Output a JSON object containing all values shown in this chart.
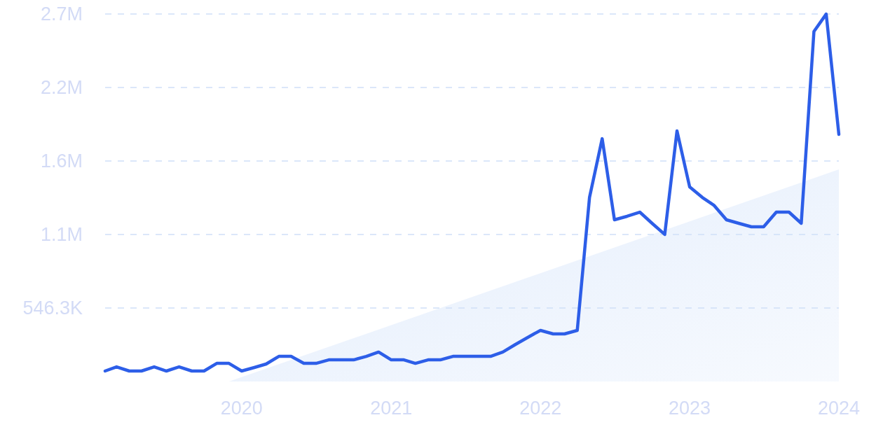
{
  "chart_data": {
    "type": "line",
    "x": [
      "2019-02",
      "2019-03",
      "2019-04",
      "2019-05",
      "2019-06",
      "2019-07",
      "2019-08",
      "2019-09",
      "2019-10",
      "2019-11",
      "2019-12",
      "2020-01",
      "2020-02",
      "2020-03",
      "2020-04",
      "2020-05",
      "2020-06",
      "2020-07",
      "2020-08",
      "2020-09",
      "2020-10",
      "2020-11",
      "2020-12",
      "2021-01",
      "2021-02",
      "2021-03",
      "2021-04",
      "2021-05",
      "2021-06",
      "2021-07",
      "2021-08",
      "2021-09",
      "2021-10",
      "2021-11",
      "2021-12",
      "2022-01",
      "2022-02",
      "2022-03",
      "2022-04",
      "2022-05",
      "2022-06",
      "2022-07",
      "2022-08",
      "2022-09",
      "2022-10",
      "2022-11",
      "2022-12",
      "2023-01",
      "2023-02",
      "2023-03",
      "2023-04",
      "2023-05",
      "2023-06",
      "2023-07",
      "2023-08",
      "2023-09",
      "2023-10",
      "2023-11",
      "2023-12",
      "2024-01"
    ],
    "series": [
      {
        "type": "area",
        "color": "#e3edfc",
        "x": [
          "2019-12",
          "2024-01"
        ],
        "values": [
          0,
          1576000
        ]
      },
      {
        "color": "#2d5ee8",
        "values": [
          78000,
          109000,
          78000,
          78000,
          109000,
          78000,
          109000,
          78000,
          78000,
          135000,
          135000,
          78000,
          104000,
          130000,
          187000,
          187000,
          135000,
          135000,
          161000,
          161000,
          161000,
          187000,
          219000,
          161000,
          161000,
          135000,
          161000,
          161000,
          187000,
          187000,
          187000,
          187000,
          219000,
          276000,
          328000,
          380000,
          354000,
          354000,
          380000,
          1368000,
          1805000,
          1202000,
          1228000,
          1259000,
          1176000,
          1093000,
          1863000,
          1446000,
          1368000,
          1311000,
          1202000,
          1176000,
          1150000,
          1150000,
          1259000,
          1259000,
          1176000,
          2601000,
          2731000,
          1837000
        ]
      }
    ],
    "xlim": [
      "2019-02",
      "2024-01"
    ],
    "xticks": [
      {
        "value": "2020",
        "label": "2020"
      },
      {
        "value": "2021",
        "label": "2021"
      },
      {
        "value": "2022",
        "label": "2022"
      },
      {
        "value": "2023",
        "label": "2023"
      },
      {
        "value": "2024",
        "label": "2024"
      }
    ],
    "ylim": [
      0,
      2731500
    ],
    "yticks": [
      {
        "value": 546300,
        "label": "546.3K"
      },
      {
        "value": 1092600,
        "label": "1.1M"
      },
      {
        "value": 1638900,
        "label": "1.6M"
      },
      {
        "value": 2185200,
        "label": "2.2M"
      },
      {
        "value": 2731500,
        "label": "2.7M"
      }
    ],
    "grid": "y"
  }
}
